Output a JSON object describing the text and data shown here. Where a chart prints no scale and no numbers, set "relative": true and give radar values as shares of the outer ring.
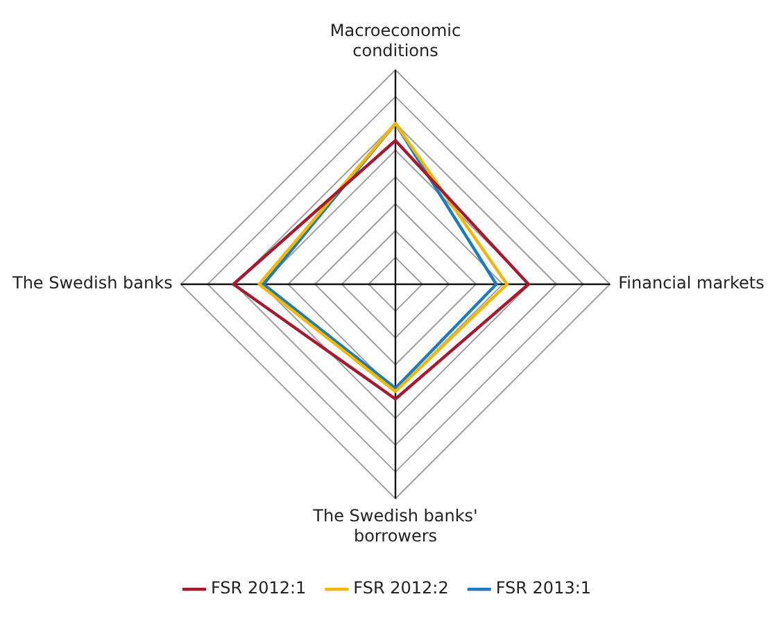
{
  "chart_data": {
    "type": "radar",
    "relative": true,
    "categories": [
      "Macroeconomic conditions",
      "Financial markets",
      "The Swedish banks' borrowers",
      "The Swedish banks"
    ],
    "series": [
      {
        "name": "FSR 2012:1",
        "color": "#a6192e",
        "values": [
          0.67,
          0.62,
          0.535,
          0.755
        ]
      },
      {
        "name": "FSR 2012:2",
        "color": "#f2b800",
        "values": [
          0.75,
          0.52,
          0.5,
          0.635
        ]
      },
      {
        "name": "FSR 2013:1",
        "color": "#1a7dc0",
        "values": [
          0.75,
          0.47,
          0.485,
          0.615
        ]
      }
    ],
    "legend": "bottom",
    "marker": "none",
    "grid": true
  }
}
